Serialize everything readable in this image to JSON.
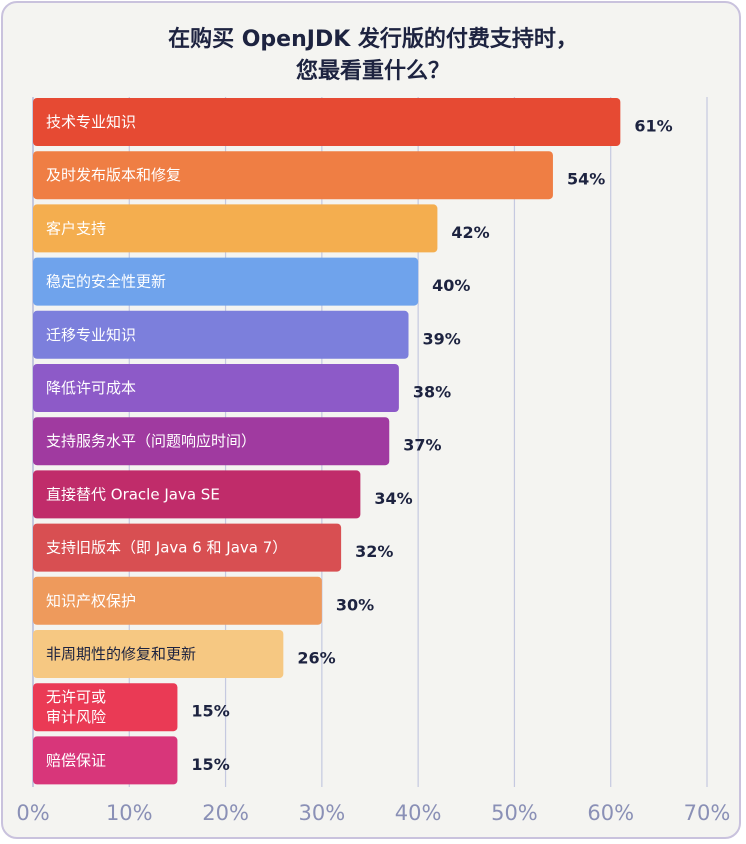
{
  "title_line1": "在购买 OpenJDK 发行版的付费支持时，",
  "title_line2": "您最看重什么？",
  "chart_data": {
    "type": "bar",
    "orientation": "horizontal",
    "title": "在购买 OpenJDK 发行版的付费支持时，您最看重什么？",
    "xlim": [
      0,
      70
    ],
    "xticks": [
      0,
      10,
      20,
      30,
      40,
      50,
      60,
      70
    ],
    "tick_suffix": "%",
    "grid": true,
    "categories": [
      [
        "技术专业知识"
      ],
      [
        "及时发布版本和修复"
      ],
      [
        "客户支持"
      ],
      [
        "稳定的安全性更新"
      ],
      [
        "迁移专业知识"
      ],
      [
        "降低许可成本"
      ],
      [
        "支持服务水平（问题响应时间）"
      ],
      [
        "直接替代 Oracle Java SE"
      ],
      [
        "支持旧版本（即 Java 6 和 Java 7）"
      ],
      [
        "知识产权保护"
      ],
      [
        "非周期性的修复和更新"
      ],
      [
        "无许可或",
        "审计风险"
      ],
      [
        "赔偿保证"
      ]
    ],
    "values": [
      61,
      54,
      42,
      40,
      39,
      38,
      37,
      34,
      32,
      30,
      26,
      15,
      15
    ],
    "value_labels": [
      "61%",
      "54%",
      "42%",
      "40%",
      "39%",
      "38%",
      "37%",
      "34%",
      "32%",
      "30%",
      "26%",
      "15%",
      "15%"
    ],
    "colors": [
      "#e64a33",
      "#ef7e44",
      "#f4ae4f",
      "#6fa3ec",
      "#7c7fdc",
      "#8d5ac8",
      "#a03aa0",
      "#c02c6a",
      "#d84f52",
      "#ee9a5c",
      "#f6c882",
      "#ea3a55",
      "#d8367a"
    ],
    "dark_label_index": [
      10
    ]
  }
}
